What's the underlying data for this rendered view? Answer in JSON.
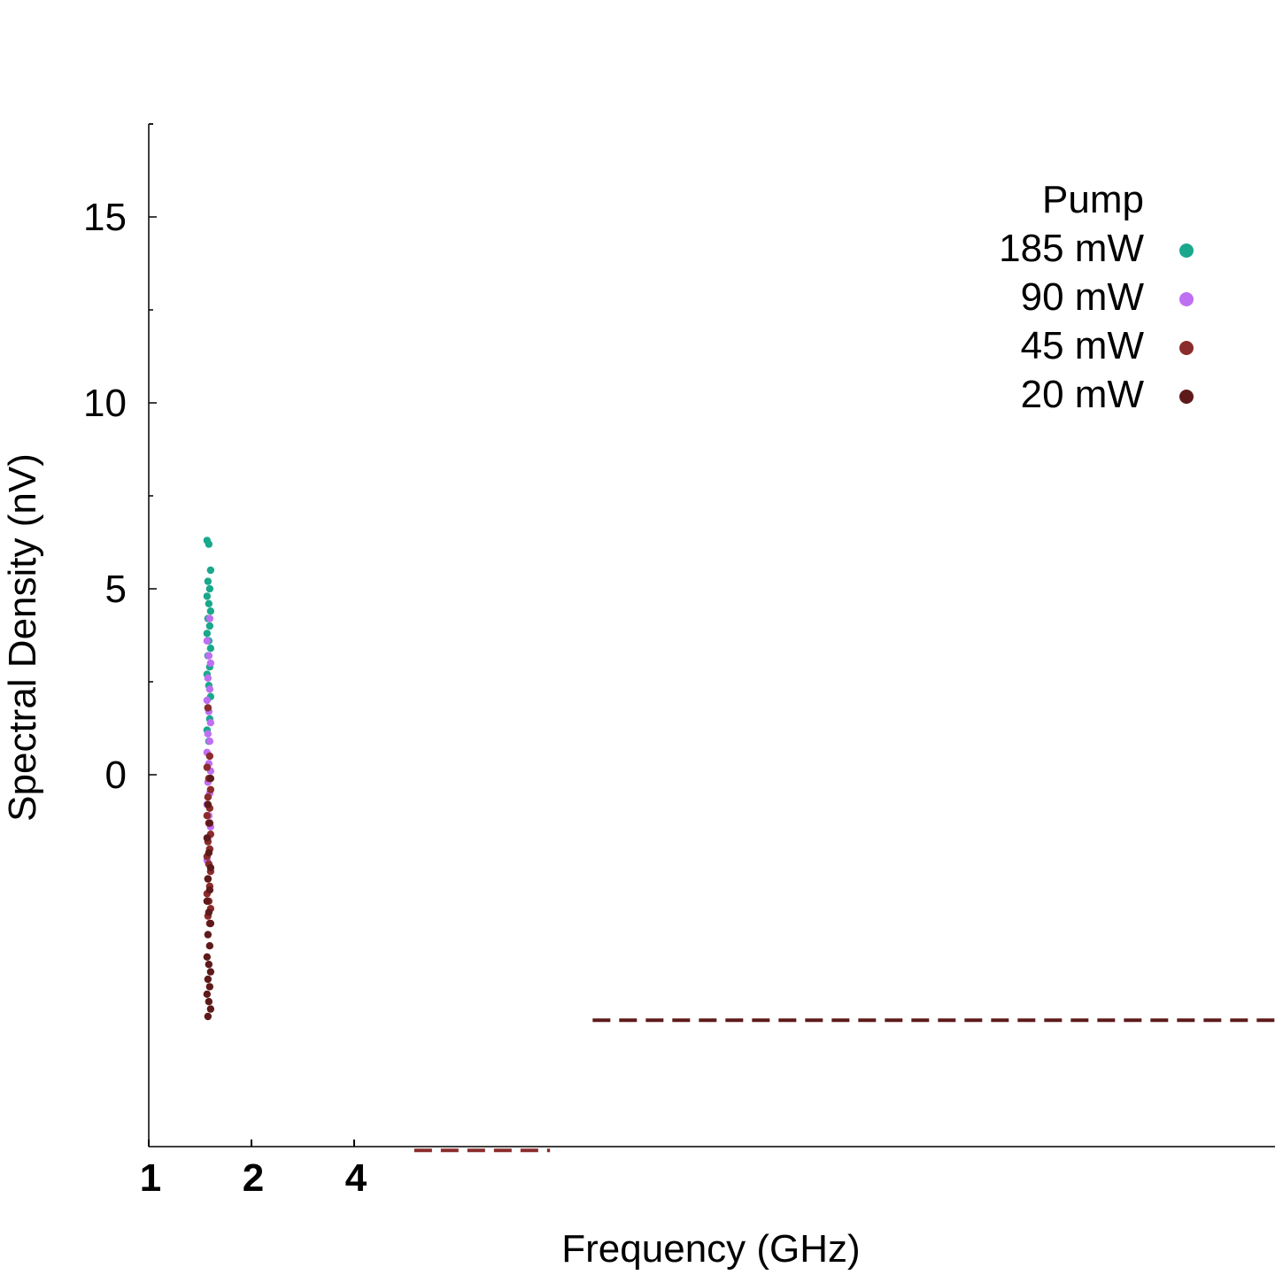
{
  "chart_data": {
    "type": "scatter",
    "title": "",
    "xlabel": "Frequency (GHz)",
    "ylabel": "Spectral Density (nV)",
    "xlim": [
      1,
      2000
    ],
    "ylim": [
      -10,
      17.5
    ],
    "yticks": [
      0,
      5,
      10,
      15
    ],
    "xtick_labels": [
      "1",
      "2",
      "4"
    ],
    "legend": {
      "title": "Pump",
      "position": "top-right",
      "entries": [
        {
          "label": "185 mW",
          "color": "#1aa88c"
        },
        {
          "label": "90 mW",
          "color": "#bf6ff2"
        },
        {
          "label": "45 mW",
          "color": "#8b2c2c"
        },
        {
          "label": "20 mW",
          "color": "#5e1a1a"
        }
      ]
    },
    "series": [
      {
        "name": "185 mW",
        "color": "#1aa88c",
        "x": 1.5,
        "values": [
          6.3,
          6.2,
          5.5,
          5.2,
          5.0,
          4.8,
          4.6,
          4.4,
          4.2,
          4.0,
          3.8,
          3.6,
          3.4,
          3.2,
          2.9,
          2.7,
          2.4,
          2.1,
          1.8,
          1.5,
          1.2,
          0.9
        ]
      },
      {
        "name": "90 mW",
        "color": "#bf6ff2",
        "x": 1.5,
        "values": [
          4.2,
          3.6,
          3.2,
          3.0,
          2.6,
          2.3,
          2.0,
          1.7,
          1.4,
          1.1,
          0.9,
          0.6,
          0.3,
          0.1,
          -0.2,
          -0.5,
          -0.8,
          -1.1,
          -1.4,
          -1.7,
          -2.0,
          -2.3
        ]
      },
      {
        "name": "45 mW",
        "color": "#8b2c2c",
        "x": 1.5,
        "values": [
          1.8,
          0.5,
          0.2,
          -0.1,
          -0.4,
          -0.6,
          -0.9,
          -1.1,
          -1.3,
          -1.6,
          -1.8,
          -2.0,
          -2.2,
          -2.4,
          -2.6,
          -2.8,
          -3.0,
          -3.2,
          -3.4,
          -3.6,
          -3.8,
          -4.0
        ]
      },
      {
        "name": "20 mW",
        "color": "#5e1a1a",
        "x": 1.5,
        "values": [
          -0.1,
          -0.8,
          -1.3,
          -1.7,
          -2.1,
          -2.5,
          -2.8,
          -3.1,
          -3.4,
          -3.7,
          -4.0,
          -4.3,
          -4.6,
          -4.9,
          -5.1,
          -5.3,
          -5.5,
          -5.7,
          -5.9,
          -6.1,
          -6.3,
          -6.5
        ]
      }
    ],
    "reference_lines": [
      {
        "color": "#5e1a1a",
        "y": -6.6,
        "x_from": 20,
        "x_to": 2000,
        "style": "dashed"
      },
      {
        "color": "#8b2c2c",
        "y": -10.1,
        "x_from": 6,
        "x_to": 15,
        "style": "dashed"
      }
    ]
  }
}
